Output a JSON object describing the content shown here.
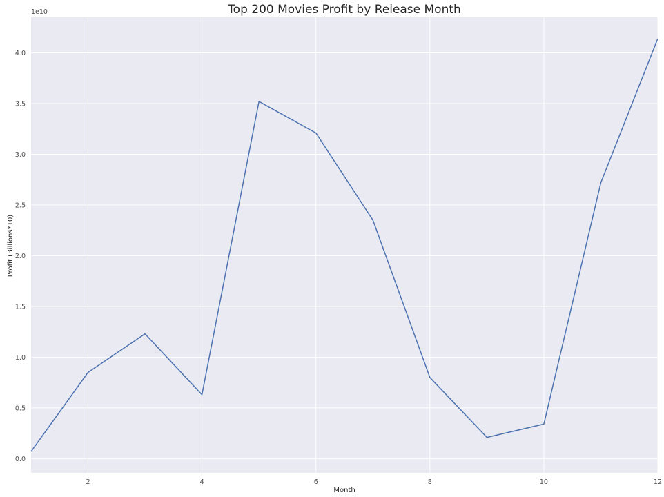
{
  "chart_data": {
    "type": "line",
    "title": "Top 200 Movies Profit by Release Month",
    "xlabel": "Month",
    "ylabel": "Profit (Billions*10)",
    "y_offset_text": "1e10",
    "xlim": [
      1,
      12
    ],
    "ylim": [
      -0.14,
      4.35
    ],
    "grid": true,
    "x_ticks": [
      2,
      4,
      6,
      8,
      10,
      12
    ],
    "x_tick_labels": [
      "2",
      "4",
      "6",
      "8",
      "10",
      "12"
    ],
    "y_ticks": [
      0,
      0.5,
      1.0,
      1.5,
      2.0,
      2.5,
      3.0,
      3.5,
      4.0
    ],
    "y_tick_labels": [
      "0.0",
      "0.5",
      "1.0",
      "1.5",
      "2.0",
      "2.5",
      "3.0",
      "3.5",
      "4.0"
    ],
    "x": [
      1,
      2,
      3,
      4,
      5,
      6,
      7,
      8,
      9,
      10,
      11,
      12
    ],
    "series": [
      {
        "values": [
          0.07,
          0.85,
          1.23,
          0.63,
          3.52,
          3.21,
          2.35,
          0.8,
          0.21,
          0.34,
          2.72,
          4.14
        ],
        "color": "#4c72b0"
      }
    ],
    "colors": {
      "plot_bg": "#eaeaf2",
      "grid": "#ffffff"
    }
  }
}
